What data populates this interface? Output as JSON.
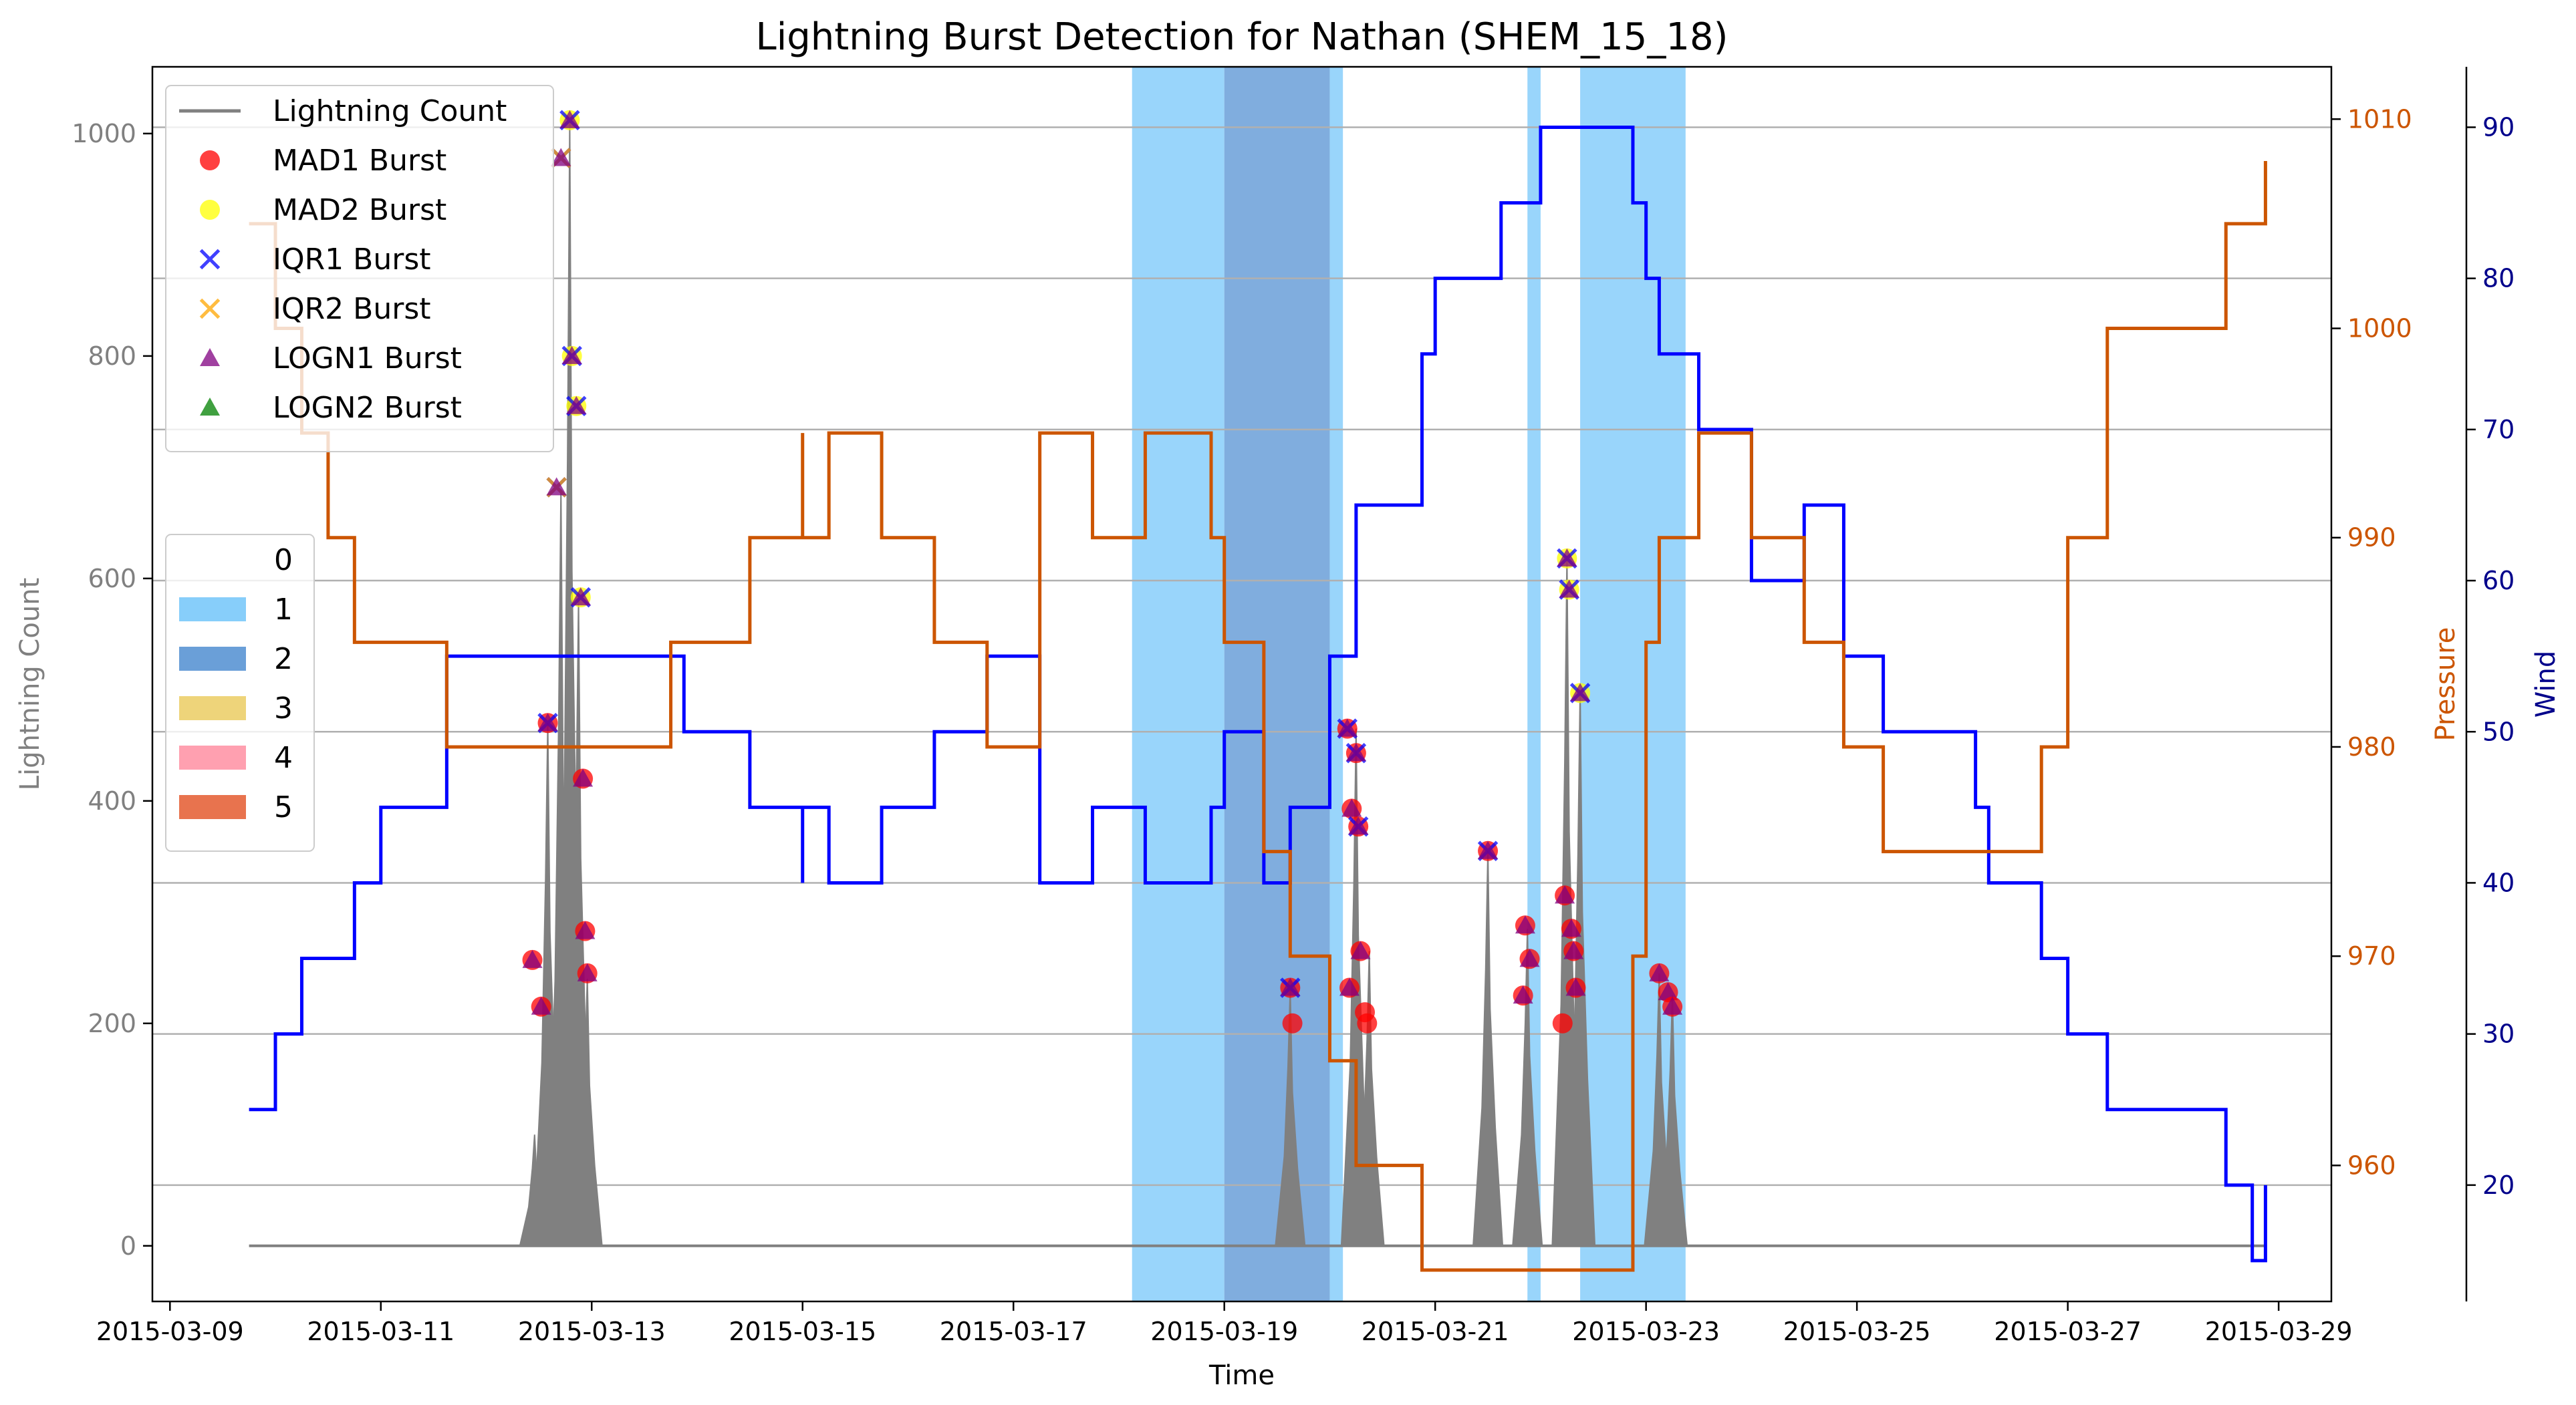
{
  "chart_data": {
    "type": "line",
    "title": "Lightning Burst Detection for Nathan (SHEM_15_18)",
    "xlabel": "Time",
    "ylabel": "Lightning Count",
    "ylabel_right1": "Pressure",
    "ylabel_right2": "Wind",
    "x_ticks": [
      "2015-03-09",
      "2015-03-11",
      "2015-03-13",
      "2015-03-15",
      "2015-03-17",
      "2015-03-19",
      "2015-03-21",
      "2015-03-23",
      "2015-03-25",
      "2015-03-27",
      "2015-03-29"
    ],
    "xlim": [
      "2015-03-08 20:00",
      "2015-03-29 12:00"
    ],
    "ylim_left": [
      -50,
      1060
    ],
    "yticks_left": [
      0,
      200,
      400,
      600,
      800,
      1000
    ],
    "ylim_pressure": [
      953.5,
      1012.5
    ],
    "yticks_pressure": [
      960,
      970,
      980,
      990,
      1000,
      1010
    ],
    "ylim_wind": [
      12.3,
      94
    ],
    "yticks_wind": [
      20,
      30,
      40,
      50,
      60,
      70,
      80,
      90
    ],
    "grid_wind_axis": true,
    "colors": {
      "lightning": "#808080",
      "pressure": "#cc5500",
      "wind": "#0000ff",
      "pressure_axis": "#cc5500",
      "wind_axis": "#00008b",
      "left_axis_text": "#808080",
      "cat0": "#ffffff",
      "cat1": "#87cefa",
      "cat2": "#6a9fd8",
      "cat3": "#eed47a",
      "cat4": "#ffa0b0",
      "cat5": "#e8734e",
      "mad1": "#ff0000",
      "mad2": "#ffff00",
      "iqr1": "#0000ff",
      "iqr2": "#ffa500",
      "logn1": "#800080",
      "logn2": "#008000"
    },
    "legend_markers": {
      "position": "upper-left",
      "entries": [
        {
          "label": "Lightning Count",
          "marker": "line"
        },
        {
          "label": "MAD1 Burst",
          "marker": "circle"
        },
        {
          "label": "MAD2 Burst",
          "marker": "circle"
        },
        {
          "label": "IQR1 Burst",
          "marker": "x"
        },
        {
          "label": "IQR2 Burst",
          "marker": "x"
        },
        {
          "label": "LOGN1 Burst",
          "marker": "triangle"
        },
        {
          "label": "LOGN2 Burst",
          "marker": "triangle"
        }
      ]
    },
    "legend_categories": {
      "position": "center-left",
      "entries": [
        "0",
        "1",
        "2",
        "3",
        "4",
        "5"
      ]
    },
    "intensity_spans": [
      {
        "start": "2015-03-18 03:00",
        "end": "2015-03-19 00:00",
        "category": 1
      },
      {
        "start": "2015-03-19 00:00",
        "end": "2015-03-20 00:00",
        "category": 2
      },
      {
        "start": "2015-03-20 00:00",
        "end": "2015-03-20 03:00",
        "category": 1
      },
      {
        "start": "2015-03-21 21:00",
        "end": "2015-03-22 00:00",
        "category": 1
      },
      {
        "start": "2015-03-22 09:00",
        "end": "2015-03-23 09:00",
        "category": 1
      }
    ],
    "wind_series": [
      [
        "2015-03-09 18:00",
        25
      ],
      [
        "2015-03-10 00:00",
        30
      ],
      [
        "2015-03-10 06:00",
        35
      ],
      [
        "2015-03-10 18:00",
        40
      ],
      [
        "2015-03-11 00:00",
        45
      ],
      [
        "2015-03-11 15:00",
        55
      ],
      [
        "2015-03-13 00:00",
        55
      ],
      [
        "2015-03-13 18:00",
        55
      ],
      [
        "2015-03-13 21:00",
        50
      ],
      [
        "2015-03-14 12:00",
        45
      ],
      [
        "2015-03-15 00:00",
        40
      ],
      [
        "2015-03-15 00:00",
        45
      ],
      [
        "2015-03-15 06:00",
        40
      ],
      [
        "2015-03-15 18:00",
        45
      ],
      [
        "2015-03-16 06:00",
        50
      ],
      [
        "2015-03-16 18:00",
        55
      ],
      [
        "2015-03-17 06:00",
        40
      ],
      [
        "2015-03-17 18:00",
        45
      ],
      [
        "2015-03-18 06:00",
        40
      ],
      [
        "2015-03-18 21:00",
        45
      ],
      [
        "2015-03-19 00:00",
        50
      ],
      [
        "2015-03-19 09:00",
        40
      ],
      [
        "2015-03-19 15:00",
        45
      ],
      [
        "2015-03-20 00:00",
        55
      ],
      [
        "2015-03-20 06:00",
        65
      ],
      [
        "2015-03-20 21:00",
        75
      ],
      [
        "2015-03-21 00:00",
        80
      ],
      [
        "2015-03-21 15:00",
        85
      ],
      [
        "2015-03-22 00:00",
        90
      ],
      [
        "2015-03-22 03:00",
        90
      ],
      [
        "2015-03-22 21:00",
        85
      ],
      [
        "2015-03-23 00:00",
        80
      ],
      [
        "2015-03-23 03:00",
        75
      ],
      [
        "2015-03-23 12:00",
        70
      ],
      [
        "2015-03-24 00:00",
        60
      ],
      [
        "2015-03-24 12:00",
        65
      ],
      [
        "2015-03-24 21:00",
        55
      ],
      [
        "2015-03-25 06:00",
        50
      ],
      [
        "2015-03-25 18:00",
        50
      ],
      [
        "2015-03-26 03:00",
        45
      ],
      [
        "2015-03-26 06:00",
        40
      ],
      [
        "2015-03-26 18:00",
        35
      ],
      [
        "2015-03-27 00:00",
        30
      ],
      [
        "2015-03-27 09:00",
        25
      ],
      [
        "2015-03-28 12:00",
        20
      ],
      [
        "2015-03-28 18:00",
        15
      ],
      [
        "2015-03-28 21:00",
        20
      ]
    ],
    "pressure_series": [
      [
        "2015-03-09 18:00",
        1005
      ],
      [
        "2015-03-10 00:00",
        1000
      ],
      [
        "2015-03-10 06:00",
        995
      ],
      [
        "2015-03-10 12:00",
        990
      ],
      [
        "2015-03-10 18:00",
        985
      ],
      [
        "2015-03-11 00:00",
        985
      ],
      [
        "2015-03-11 15:00",
        980
      ],
      [
        "2015-03-13 00:00",
        980
      ],
      [
        "2015-03-13 18:00",
        985
      ],
      [
        "2015-03-13 21:00",
        985
      ],
      [
        "2015-03-14 12:00",
        990
      ],
      [
        "2015-03-15 00:00",
        995
      ],
      [
        "2015-03-15 00:00",
        990
      ],
      [
        "2015-03-15 06:00",
        995
      ],
      [
        "2015-03-15 18:00",
        990
      ],
      [
        "2015-03-16 06:00",
        985
      ],
      [
        "2015-03-16 18:00",
        980
      ],
      [
        "2015-03-17 06:00",
        995
      ],
      [
        "2015-03-17 18:00",
        990
      ],
      [
        "2015-03-18 06:00",
        995
      ],
      [
        "2015-03-18 21:00",
        990
      ],
      [
        "2015-03-19 00:00",
        985
      ],
      [
        "2015-03-19 09:00",
        975
      ],
      [
        "2015-03-19 15:00",
        970
      ],
      [
        "2015-03-20 00:00",
        965
      ],
      [
        "2015-03-20 06:00",
        960
      ],
      [
        "2015-03-20 21:00",
        955
      ],
      [
        "2015-03-21 00:00",
        955
      ],
      [
        "2015-03-21 15:00",
        955
      ],
      [
        "2015-03-22 00:00",
        955
      ],
      [
        "2015-03-22 03:00",
        955
      ],
      [
        "2015-03-22 21:00",
        970
      ],
      [
        "2015-03-23 00:00",
        985
      ],
      [
        "2015-03-23 03:00",
        990
      ],
      [
        "2015-03-23 12:00",
        995
      ],
      [
        "2015-03-24 00:00",
        990
      ],
      [
        "2015-03-24 12:00",
        985
      ],
      [
        "2015-03-24 21:00",
        980
      ],
      [
        "2015-03-25 06:00",
        975
      ],
      [
        "2015-03-25 18:00",
        975
      ],
      [
        "2015-03-26 03:00",
        975
      ],
      [
        "2015-03-26 06:00",
        975
      ],
      [
        "2015-03-26 18:00",
        980
      ],
      [
        "2015-03-27 00:00",
        990
      ],
      [
        "2015-03-27 09:00",
        1000
      ],
      [
        "2015-03-28 12:00",
        1005
      ],
      [
        "2015-03-28 21:00",
        1008
      ]
    ],
    "lightning_peaks": [
      [
        "2015-03-12 11:00",
        100
      ],
      [
        "2015-03-12 14:00",
        470
      ],
      [
        "2015-03-12 17:00",
        680
      ],
      [
        "2015-03-12 19:00",
        1010
      ],
      [
        "2015-03-12 21:00",
        580
      ],
      [
        "2015-03-12 23:00",
        240
      ],
      [
        "2015-03-19 15:00",
        230
      ],
      [
        "2015-03-20 06:00",
        465
      ],
      [
        "2015-03-20 09:00",
        265
      ],
      [
        "2015-03-21 12:00",
        355
      ],
      [
        "2015-03-21 21:00",
        285
      ],
      [
        "2015-03-22 06:00",
        620
      ],
      [
        "2015-03-22 09:00",
        500
      ],
      [
        "2015-03-23 03:00",
        245
      ],
      [
        "2015-03-23 06:00",
        225
      ]
    ],
    "burst_points": [
      {
        "x": "2015-03-12 10:30",
        "y": 257,
        "detectors": [
          "MAD1",
          "LOGN1"
        ]
      },
      {
        "x": "2015-03-12 12:30",
        "y": 215,
        "detectors": [
          "MAD1",
          "LOGN1"
        ]
      },
      {
        "x": "2015-03-12 14:00",
        "y": 470,
        "detectors": [
          "MAD1",
          "IQR1",
          "LOGN1"
        ]
      },
      {
        "x": "2015-03-12 16:00",
        "y": 682,
        "detectors": [
          "IQR1",
          "IQR2",
          "LOGN1"
        ]
      },
      {
        "x": "2015-03-12 17:00",
        "y": 978,
        "detectors": [
          "IQR1",
          "IQR2",
          "LOGN1"
        ]
      },
      {
        "x": "2015-03-12 19:00",
        "y": 1012,
        "detectors": [
          "MAD2",
          "IQR1",
          "LOGN1"
        ]
      },
      {
        "x": "2015-03-12 19:30",
        "y": 800,
        "detectors": [
          "MAD2",
          "IQR1",
          "LOGN1"
        ]
      },
      {
        "x": "2015-03-12 20:30",
        "y": 755,
        "detectors": [
          "MAD2",
          "IQR1",
          "LOGN1"
        ]
      },
      {
        "x": "2015-03-12 21:30",
        "y": 583,
        "detectors": [
          "MAD2",
          "IQR1",
          "LOGN1"
        ]
      },
      {
        "x": "2015-03-12 22:00",
        "y": 420,
        "detectors": [
          "MAD1",
          "LOGN1"
        ]
      },
      {
        "x": "2015-03-12 22:30",
        "y": 283,
        "detectors": [
          "MAD1",
          "LOGN1"
        ]
      },
      {
        "x": "2015-03-12 23:00",
        "y": 245,
        "detectors": [
          "MAD1",
          "LOGN1"
        ]
      },
      {
        "x": "2015-03-19 15:00",
        "y": 232,
        "detectors": [
          "MAD1",
          "IQR1",
          "LOGN1"
        ]
      },
      {
        "x": "2015-03-19 15:30",
        "y": 200,
        "detectors": [
          "MAD1"
        ]
      },
      {
        "x": "2015-03-20 04:00",
        "y": 465,
        "detectors": [
          "MAD1",
          "IQR1",
          "LOGN1"
        ]
      },
      {
        "x": "2015-03-20 05:00",
        "y": 393,
        "detectors": [
          "MAD1",
          "LOGN1"
        ]
      },
      {
        "x": "2015-03-20 06:00",
        "y": 443,
        "detectors": [
          "MAD1",
          "IQR1",
          "LOGN1"
        ]
      },
      {
        "x": "2015-03-20 06:30",
        "y": 377,
        "detectors": [
          "MAD1",
          "IQR1",
          "LOGN1"
        ]
      },
      {
        "x": "2015-03-20 07:00",
        "y": 265,
        "detectors": [
          "MAD1",
          "LOGN1"
        ]
      },
      {
        "x": "2015-03-20 04:30",
        "y": 232,
        "detectors": [
          "MAD1",
          "LOGN1"
        ]
      },
      {
        "x": "2015-03-20 08:00",
        "y": 210,
        "detectors": [
          "MAD1"
        ]
      },
      {
        "x": "2015-03-20 08:30",
        "y": 200,
        "detectors": [
          "MAD1"
        ]
      },
      {
        "x": "2015-03-21 12:00",
        "y": 355,
        "detectors": [
          "MAD1",
          "IQR1",
          "LOGN1"
        ]
      },
      {
        "x": "2015-03-21 20:30",
        "y": 288,
        "detectors": [
          "MAD1",
          "LOGN1"
        ]
      },
      {
        "x": "2015-03-21 21:30",
        "y": 258,
        "detectors": [
          "MAD1",
          "LOGN1"
        ]
      },
      {
        "x": "2015-03-21 20:00",
        "y": 225,
        "detectors": [
          "MAD1",
          "LOGN1"
        ]
      },
      {
        "x": "2015-03-22 05:00",
        "y": 200,
        "detectors": [
          "MAD1"
        ]
      },
      {
        "x": "2015-03-22 05:30",
        "y": 315,
        "detectors": [
          "MAD1",
          "LOGN1"
        ]
      },
      {
        "x": "2015-03-22 06:00",
        "y": 618,
        "detectors": [
          "MAD2",
          "IQR1",
          "LOGN1"
        ]
      },
      {
        "x": "2015-03-22 06:30",
        "y": 590,
        "detectors": [
          "MAD2",
          "IQR1",
          "LOGN1"
        ]
      },
      {
        "x": "2015-03-22 07:00",
        "y": 285,
        "detectors": [
          "MAD1",
          "LOGN1"
        ]
      },
      {
        "x": "2015-03-22 07:30",
        "y": 265,
        "detectors": [
          "MAD1",
          "LOGN1"
        ]
      },
      {
        "x": "2015-03-22 08:00",
        "y": 232,
        "detectors": [
          "MAD1",
          "LOGN1"
        ]
      },
      {
        "x": "2015-03-22 09:00",
        "y": 497,
        "detectors": [
          "MAD2",
          "IQR1",
          "LOGN1"
        ]
      },
      {
        "x": "2015-03-23 03:00",
        "y": 245,
        "detectors": [
          "MAD1",
          "LOGN1"
        ]
      },
      {
        "x": "2015-03-23 05:00",
        "y": 228,
        "detectors": [
          "MAD1",
          "LOGN1"
        ]
      },
      {
        "x": "2015-03-23 06:00",
        "y": 215,
        "detectors": [
          "MAD1",
          "LOGN1"
        ]
      }
    ]
  }
}
